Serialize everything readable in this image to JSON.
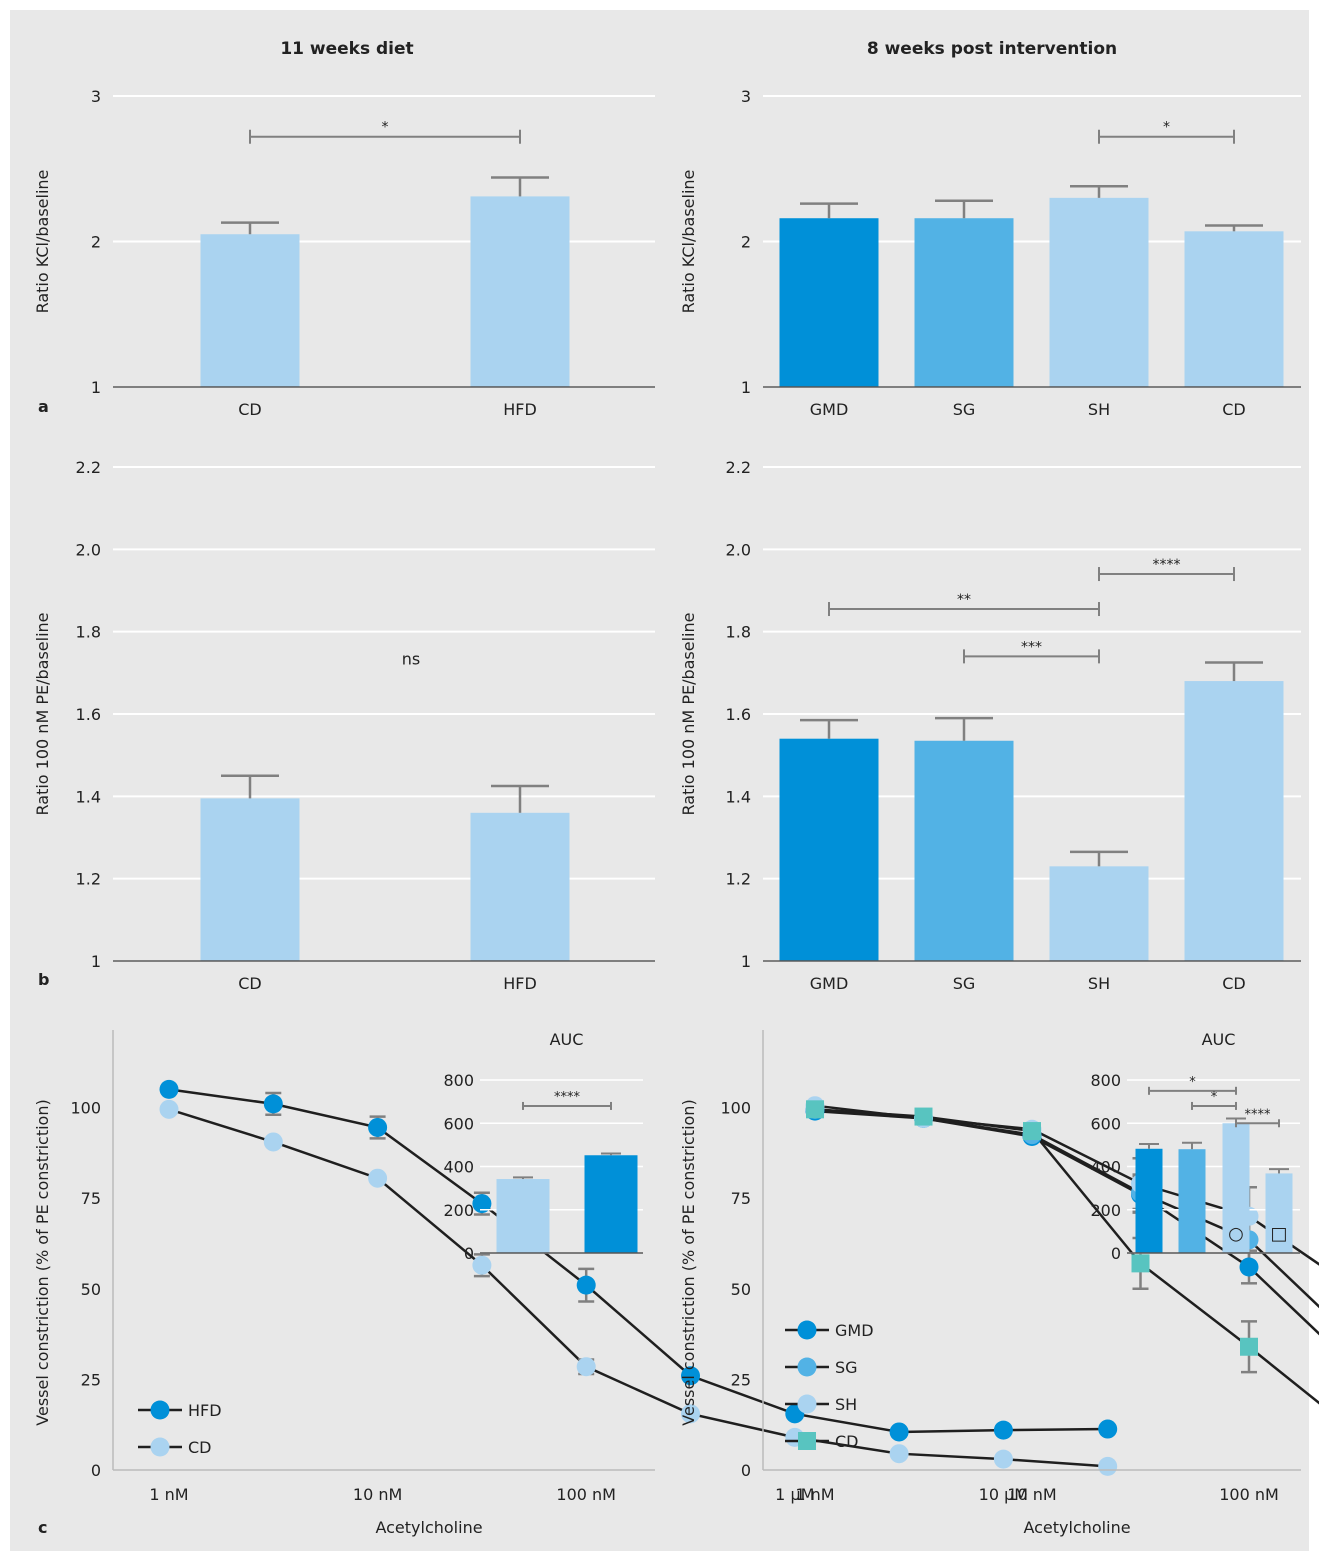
{
  "figure": {
    "background": "#e8e8e8",
    "colors": {
      "GMD": "#0090d8",
      "SG": "#52b2e5",
      "SH": "#aad3f0",
      "CD_light": "#aad3f0",
      "HFD_dark": "#0090d8",
      "CD_teal": "#58c4c0",
      "error_bar": "#808080",
      "line": "#1f1f1f",
      "grid": "#ffffff"
    },
    "column_titles": [
      "11 weeks diet",
      "8 weeks post intervention"
    ],
    "panel_letters": [
      "a",
      "b",
      "c"
    ]
  },
  "chart_data": [
    {
      "id": "a-left",
      "type": "bar",
      "ylabel": "Ratio KCl/baseline",
      "ylim": [
        1,
        3
      ],
      "yticks": [
        "1",
        "2",
        "3"
      ],
      "categories": [
        "CD",
        "HFD"
      ],
      "values": [
        2.05,
        2.31
      ],
      "errors": [
        0.08,
        0.13
      ],
      "bar_colors": [
        "#aad3f0",
        "#aad3f0"
      ],
      "significance": [
        {
          "from": "CD",
          "to": "HFD",
          "y": 2.72,
          "label": "*"
        }
      ]
    },
    {
      "id": "a-right",
      "type": "bar",
      "ylabel": "Ratio KCl/baseline",
      "ylim": [
        1,
        3
      ],
      "yticks": [
        "1",
        "2",
        "3"
      ],
      "categories": [
        "GMD",
        "SG",
        "SH",
        "CD"
      ],
      "values": [
        2.16,
        2.16,
        2.3,
        2.07
      ],
      "errors": [
        0.1,
        0.12,
        0.08,
        0.04
      ],
      "bar_colors": [
        "#0090d8",
        "#52b2e5",
        "#aad3f0",
        "#aad3f0"
      ],
      "significance": [
        {
          "from": "SH",
          "to": "CD",
          "y": 2.72,
          "label": "*"
        }
      ]
    },
    {
      "id": "b-left",
      "type": "bar",
      "ylabel": "Ratio 100 nM PE/baseline",
      "ylim": [
        1,
        2.2
      ],
      "yticks": [
        "1",
        "1.2",
        "1.4",
        "1.6",
        "1.8",
        "2.0",
        "2.2"
      ],
      "categories": [
        "CD",
        "HFD"
      ],
      "values": [
        1.395,
        1.36
      ],
      "errors": [
        0.055,
        0.065
      ],
      "bar_colors": [
        "#aad3f0",
        "#aad3f0"
      ],
      "annotation": "ns",
      "significance": []
    },
    {
      "id": "b-right",
      "type": "bar",
      "ylabel": "Ratio 100 nM PE/baseline",
      "ylim": [
        1,
        2.2
      ],
      "yticks": [
        "1",
        "1.2",
        "1.4",
        "1.6",
        "1.8",
        "2.0",
        "2.2"
      ],
      "categories": [
        "GMD",
        "SG",
        "SH",
        "CD"
      ],
      "values": [
        1.54,
        1.535,
        1.23,
        1.68
      ],
      "errors": [
        0.045,
        0.055,
        0.035,
        0.045
      ],
      "bar_colors": [
        "#0090d8",
        "#52b2e5",
        "#aad3f0",
        "#aad3f0"
      ],
      "significance": [
        {
          "from": "SH",
          "to": "CD",
          "y": 1.94,
          "label": "****"
        },
        {
          "from": "GMD",
          "to": "SH",
          "y": 1.855,
          "label": "**"
        },
        {
          "from": "SG",
          "to": "SH",
          "y": 1.74,
          "label": "***"
        }
      ]
    },
    {
      "id": "c-left",
      "type": "line",
      "ylabel": "Vessel constriction (% of PE constriction)",
      "xlabel": "Acetylcholine",
      "ylim": [
        0,
        120
      ],
      "yticks": [
        0,
        25,
        50,
        75,
        100
      ],
      "xlim": [
        -9.35,
        -4.45
      ],
      "xticks": [
        {
          "value": -9,
          "label": "1 nM"
        },
        {
          "value": -8,
          "label": "10 nM"
        },
        {
          "value": -7,
          "label": "100 nM"
        },
        {
          "value": -6,
          "label": "1 µM"
        },
        {
          "value": -5,
          "label": "10 µM"
        }
      ],
      "x": [
        -9,
        -8.5,
        -8,
        -7.5,
        -7,
        -6.5,
        -6,
        -5.5,
        -5,
        -4.5
      ],
      "series": [
        {
          "name": "HFD",
          "marker": "circle",
          "color": "#0090d8",
          "values": [
            105,
            101,
            94.5,
            73.5,
            51,
            26,
            15.5,
            10.5,
            11,
            11.3
          ],
          "errors": [
            0,
            3,
            3,
            3,
            4.5,
            0,
            0,
            0,
            0,
            0
          ]
        },
        {
          "name": "CD",
          "marker": "circle",
          "color": "#aad3f0",
          "values": [
            99.5,
            90.5,
            80.5,
            56.5,
            28.5,
            15.5,
            9,
            4.5,
            3,
            1
          ],
          "errors": [
            0,
            0,
            0,
            3,
            2,
            0,
            0,
            0,
            0,
            0
          ]
        }
      ],
      "inset": {
        "title": "AUC",
        "ylim": [
          0,
          800
        ],
        "yticks": [
          0,
          200,
          400,
          600,
          800
        ],
        "categories": [
          "CD",
          "HFD"
        ],
        "values": [
          342,
          452
        ],
        "errors": [
          8,
          8
        ],
        "bar_colors": [
          "#aad3f0",
          "#0090d8"
        ],
        "significance": [
          {
            "from": 0,
            "to": 1,
            "y": 680,
            "label": "****"
          }
        ]
      }
    },
    {
      "id": "c-right",
      "type": "line",
      "ylabel": "Vessel constriction (% of PE constriction)",
      "xlabel": "Acetylcholine",
      "ylim": [
        0,
        120
      ],
      "yticks": [
        0,
        25,
        50,
        75,
        100
      ],
      "xlim": [
        -9.35,
        -4.45
      ],
      "xticks": [
        {
          "value": -9,
          "label": "1 nM"
        },
        {
          "value": -8,
          "label": "10 nM"
        },
        {
          "value": -7,
          "label": "100 nM"
        },
        {
          "value": -6,
          "label": "1 µM"
        },
        {
          "value": -5,
          "label": "10 µM"
        }
      ],
      "x": [
        -9,
        -8.5,
        -8,
        -7.5,
        -7,
        -6.5,
        -6,
        -5.5,
        -5,
        -4.5
      ],
      "series": [
        {
          "name": "GMD",
          "marker": "circle",
          "color": "#0090d8",
          "values": [
            99,
            97,
            92,
            76,
            56,
            27.5,
            19,
            16.5,
            16,
            16
          ],
          "errors": [
            0,
            0,
            0,
            5,
            4.5,
            4.5,
            2.5,
            0,
            0,
            0
          ]
        },
        {
          "name": "SG",
          "marker": "circle",
          "color": "#52b2e5",
          "values": [
            99.5,
            97,
            92.5,
            76.5,
            63.5,
            35,
            21.5,
            12.5,
            12,
            11.5
          ],
          "errors": [
            0,
            0,
            0,
            5,
            7.5,
            6,
            4,
            2,
            2,
            1.5
          ]
        },
        {
          "name": "SH",
          "marker": "circle",
          "color": "#aad3f0",
          "values": [
            100.5,
            97,
            94,
            79,
            70,
            49.5,
            46,
            26,
            17.5,
            17
          ],
          "errors": [
            0,
            0,
            0,
            7,
            8,
            8,
            8,
            4,
            3.5,
            4.5
          ]
        },
        {
          "name": "CD",
          "marker": "square",
          "color": "#58c4c0",
          "values": [
            99.5,
            97.5,
            93.5,
            57,
            34,
            10,
            6.5,
            4,
            4,
            3.5
          ],
          "errors": [
            0,
            0,
            0,
            7,
            7,
            3,
            0,
            0,
            0,
            0
          ]
        }
      ],
      "inset": {
        "title": "AUC",
        "ylim": [
          0,
          800
        ],
        "yticks": [
          0,
          200,
          400,
          600,
          800
        ],
        "categories": [
          "GMD",
          "SG",
          "SH",
          "CD"
        ],
        "values": [
          482,
          480,
          600,
          368
        ],
        "errors": [
          22,
          30,
          22,
          20
        ],
        "bar_colors": [
          "#0090d8",
          "#52b2e5",
          "#aad3f0",
          "#aad3f0"
        ],
        "markers": [
          "",
          "",
          "○",
          "□"
        ],
        "significance": [
          {
            "from": 0,
            "to": 2,
            "y": 750,
            "label": "*"
          },
          {
            "from": 1,
            "to": 2,
            "y": 680,
            "label": "*"
          },
          {
            "from": 2,
            "to": 3,
            "y": 600,
            "label": "****"
          }
        ]
      }
    }
  ]
}
